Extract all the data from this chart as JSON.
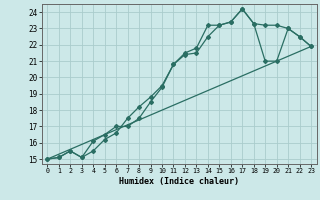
{
  "xlabel": "Humidex (Indice chaleur)",
  "bg_color": "#cce8e8",
  "grid_color": "#aacccc",
  "line_color": "#2a6e63",
  "xlim": [
    -0.5,
    23.5
  ],
  "ylim": [
    14.7,
    24.5
  ],
  "xticks": [
    0,
    1,
    2,
    3,
    4,
    5,
    6,
    7,
    8,
    9,
    10,
    11,
    12,
    13,
    14,
    15,
    16,
    17,
    18,
    19,
    20,
    21,
    22,
    23
  ],
  "yticks": [
    15,
    16,
    17,
    18,
    19,
    20,
    21,
    22,
    23,
    24
  ],
  "line1_x": [
    0,
    1,
    2,
    3,
    4,
    5,
    6,
    7,
    8,
    9,
    10,
    11,
    12,
    13,
    14,
    15,
    16,
    17,
    18,
    19,
    20,
    21,
    22,
    23
  ],
  "line1_y": [
    15.0,
    15.1,
    15.5,
    15.1,
    15.5,
    16.2,
    16.6,
    17.5,
    18.2,
    18.8,
    19.5,
    20.8,
    21.4,
    21.5,
    22.5,
    23.2,
    23.4,
    24.2,
    23.3,
    23.2,
    23.2,
    23.0,
    22.5,
    21.9
  ],
  "line2_x": [
    0,
    1,
    2,
    3,
    4,
    5,
    6,
    7,
    8,
    9,
    10,
    11,
    12,
    13,
    14,
    15,
    16,
    17,
    18,
    19,
    20,
    21,
    22,
    23
  ],
  "line2_y": [
    15.0,
    15.1,
    15.5,
    15.1,
    16.1,
    16.5,
    17.0,
    17.0,
    17.5,
    18.5,
    19.4,
    20.8,
    21.5,
    21.8,
    23.2,
    23.2,
    23.4,
    24.2,
    23.3,
    21.0,
    21.0,
    23.0,
    22.5,
    21.9
  ],
  "line3_x": [
    0,
    23
  ],
  "line3_y": [
    15.0,
    21.9
  ]
}
